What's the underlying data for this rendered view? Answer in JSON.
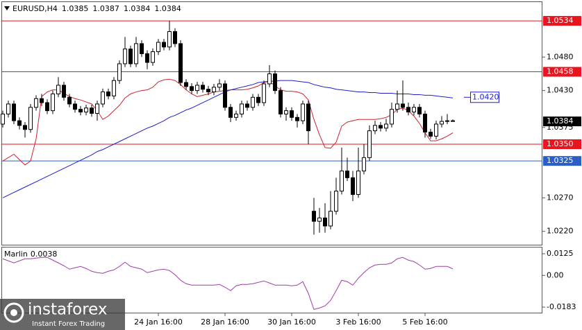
{
  "chart_data": {
    "type": "candlestick",
    "title": "EURUSD,H4",
    "categories": [
      null,
      null,
      null,
      null,
      null,
      null,
      null,
      null,
      null,
      null,
      null,
      null,
      null,
      null,
      null,
      null,
      null,
      null,
      null,
      null,
      null,
      null,
      null,
      null,
      null,
      null,
      null,
      null,
      "24 Jan 16:00",
      null,
      null,
      null,
      null,
      null,
      null,
      null,
      null,
      null,
      null,
      null,
      "28 Jan 16:00",
      null,
      null,
      null,
      null,
      null,
      null,
      null,
      null,
      null,
      null,
      null,
      "30 Jan 16:00",
      null,
      null,
      null,
      null,
      null,
      null,
      null,
      null,
      null,
      null,
      null,
      "3 Feb 16:00",
      null,
      null,
      null,
      null,
      null,
      null,
      null,
      null,
      null,
      null,
      null,
      "5 Feb 16:00",
      null,
      null,
      null,
      null,
      null
    ],
    "open": [
      1.038,
      1.0395,
      1.041,
      1.0385,
      1.0378,
      1.0372,
      1.0405,
      1.0418,
      1.0412,
      1.04,
      1.0425,
      1.0438,
      1.042,
      1.041,
      1.0402,
      1.0398,
      1.0404,
      1.0396,
      1.041,
      1.0428,
      1.0422,
      1.0445,
      1.047,
      1.0492,
      1.047,
      1.05,
      1.0485,
      1.0472,
      1.0488,
      1.0502,
      1.0495,
      1.0518,
      1.05,
      1.0442,
      1.0436,
      1.043,
      1.0438,
      1.0432,
      1.0428,
      1.0435,
      1.044,
      1.0405,
      1.039,
      1.0395,
      1.041,
      1.0405,
      1.042,
      1.0412,
      1.044,
      1.0455,
      1.043,
      1.0395,
      1.04,
      1.039,
      1.0385,
      1.041,
      1.025,
      1.0235,
      1.024,
      1.0228,
      1.025,
      1.028,
      1.031,
      1.03,
      1.0275,
      1.031,
      1.033,
      1.037,
      1.0378,
      1.0374,
      1.038,
      1.0402,
      1.041,
      1.0405,
      1.0398,
      1.0405,
      1.0395,
      1.0368,
      1.0362,
      1.038,
      1.0384,
      1.0385
    ],
    "high": [
      1.04,
      1.0415,
      1.0415,
      1.039,
      1.0383,
      1.041,
      1.0423,
      1.0425,
      1.0417,
      1.043,
      1.045,
      1.0443,
      1.0425,
      1.0415,
      1.0407,
      1.0409,
      1.0409,
      1.0415,
      1.0433,
      1.0433,
      1.045,
      1.0475,
      1.051,
      1.0497,
      1.051,
      1.0505,
      1.049,
      1.0493,
      1.0507,
      1.0507,
      1.0534,
      1.0523,
      1.0505,
      1.0447,
      1.0441,
      1.0443,
      1.0443,
      1.0437,
      1.044,
      1.0447,
      1.0445,
      1.041,
      1.04,
      1.0415,
      1.0415,
      1.0425,
      1.0425,
      1.0445,
      1.0468,
      1.046,
      1.0435,
      1.0405,
      1.0405,
      1.0395,
      1.0415,
      1.0415,
      1.027,
      1.0255,
      1.0262,
      1.028,
      1.03,
      1.0345,
      1.033,
      1.031,
      1.0345,
      1.035,
      1.0378,
      1.0385,
      1.0383,
      1.0388,
      1.0412,
      1.043,
      1.0445,
      1.0412,
      1.041,
      1.041,
      1.04,
      1.0373,
      1.0385,
      1.0392,
      1.0395,
      1.0387
    ],
    "low": [
      1.0375,
      1.039,
      1.038,
      1.0372,
      1.036,
      1.0367,
      1.04,
      1.0407,
      1.0395,
      1.0395,
      1.042,
      1.0415,
      1.0405,
      1.0397,
      1.0393,
      1.0393,
      1.0391,
      1.0385,
      1.0405,
      1.0417,
      1.0417,
      1.044,
      1.0465,
      1.0465,
      1.0465,
      1.048,
      1.0462,
      1.0467,
      1.0483,
      1.049,
      1.049,
      1.0495,
      1.0437,
      1.0431,
      1.0425,
      1.0425,
      1.0427,
      1.0423,
      1.0423,
      1.043,
      1.04,
      1.0383,
      1.0385,
      1.039,
      1.04,
      1.04,
      1.0407,
      1.0407,
      1.0435,
      1.0425,
      1.039,
      1.0385,
      1.0385,
      1.0375,
      1.038,
      1.035,
      1.0215,
      1.0218,
      1.0218,
      1.0223,
      1.0245,
      1.0275,
      1.0295,
      1.0265,
      1.027,
      1.0305,
      1.0325,
      1.0365,
      1.0369,
      1.0369,
      1.0375,
      1.0397,
      1.04,
      1.0393,
      1.0393,
      1.039,
      1.036,
      1.0358,
      1.0357,
      1.0375,
      1.038,
      1.0384
    ],
    "close": [
      1.0395,
      1.041,
      1.0385,
      1.0378,
      1.0372,
      1.0405,
      1.0418,
      1.0412,
      1.04,
      1.0425,
      1.0438,
      1.042,
      1.041,
      1.0402,
      1.0398,
      1.0404,
      1.0396,
      1.041,
      1.0428,
      1.0422,
      1.0445,
      1.047,
      1.0492,
      1.047,
      1.05,
      1.0485,
      1.0472,
      1.0488,
      1.0502,
      1.0495,
      1.0518,
      1.05,
      1.0442,
      1.0436,
      1.043,
      1.0438,
      1.0432,
      1.0428,
      1.0435,
      1.044,
      1.0405,
      1.039,
      1.0395,
      1.041,
      1.0405,
      1.042,
      1.0412,
      1.044,
      1.0455,
      1.043,
      1.0395,
      1.04,
      1.039,
      1.0385,
      1.041,
      1.037,
      1.0235,
      1.024,
      1.0228,
      1.025,
      1.028,
      1.031,
      1.03,
      1.0275,
      1.031,
      1.033,
      1.037,
      1.0378,
      1.0374,
      1.038,
      1.0402,
      1.041,
      1.0405,
      1.0398,
      1.0405,
      1.0395,
      1.0368,
      1.0362,
      1.038,
      1.0384,
      1.0385,
      1.0384
    ],
    "up_color": "#ffffff",
    "down_color": "#000000",
    "overlays": [
      {
        "color": "#d2202c",
        "values": [
          1.0325,
          1.033,
          1.0335,
          1.0327,
          1.0319,
          1.0325,
          1.0358,
          1.0421,
          1.0428,
          1.0431,
          1.0431,
          1.0426,
          1.0421,
          1.0418,
          1.0416,
          1.0413,
          1.041,
          1.04,
          1.0387,
          1.0392,
          1.04,
          1.0408,
          1.0419,
          1.0425,
          1.0428,
          1.043,
          1.0431,
          1.0435,
          1.0443,
          1.0446,
          1.0447,
          1.0445,
          1.0439,
          1.0431,
          1.0425,
          1.0421,
          1.0423,
          1.0425,
          1.0428,
          1.0429,
          1.043,
          1.0431,
          1.0431,
          1.0431,
          1.0432,
          1.0434,
          1.0437,
          1.0442,
          1.0444,
          1.0437,
          1.0431,
          1.0429,
          1.0429,
          1.0428,
          1.0425,
          1.0416,
          1.0387,
          1.0364,
          1.0345,
          1.0344,
          1.0353,
          1.0377,
          1.0383,
          1.0385,
          1.0387,
          1.0387,
          1.0387,
          1.0387,
          1.0388,
          1.039,
          1.0394,
          1.0402,
          1.0404,
          1.04,
          1.0392,
          1.0381,
          1.0367,
          1.0355,
          1.0355,
          1.0358,
          1.0362,
          1.0367
        ]
      },
      {
        "color": "#1c1ccc",
        "values": [
          1.027,
          1.0274,
          1.0278,
          1.0282,
          1.0286,
          1.029,
          1.0294,
          1.0298,
          1.0302,
          1.0306,
          1.031,
          1.0314,
          1.0318,
          1.0322,
          1.0326,
          1.033,
          1.0334,
          1.0339,
          1.0342,
          1.0346,
          1.035,
          1.0354,
          1.0358,
          1.0362,
          1.0366,
          1.037,
          1.0374,
          1.0377,
          1.0381,
          1.0385,
          1.039,
          1.0393,
          1.0397,
          1.0401,
          1.0404,
          1.0408,
          1.0412,
          1.0416,
          1.042,
          1.0424,
          1.0428,
          1.0431,
          1.0433,
          1.0435,
          1.0437,
          1.0439,
          1.0442,
          1.0443,
          1.0444,
          1.0444,
          1.0445,
          1.0445,
          1.0445,
          1.0444,
          1.0443,
          1.0442,
          1.0439,
          1.0437,
          1.0435,
          1.0434,
          1.0432,
          1.0431,
          1.043,
          1.0429,
          1.0428,
          1.0428,
          1.0427,
          1.0427,
          1.0426,
          1.0426,
          1.0426,
          1.0425,
          1.0425,
          1.0425,
          1.0424,
          1.0424,
          1.0423,
          1.0423,
          1.0422,
          1.0421,
          1.042,
          1.0419
        ]
      }
    ],
    "ylim": [
      1.0199,
      1.0562
    ],
    "yticks": [
      {
        "value": 1.048,
        "label": "1.0480"
      },
      {
        "value": 1.043,
        "label": "1.0430"
      },
      1.0375,
      {
        "value": 1.027,
        "label": "1.0270"
      },
      {
        "value": 1.022,
        "label": "1.0220"
      }
    ],
    "levels": [
      {
        "value": 1.0534,
        "color": "#e8141e"
      },
      {
        "value": 1.0458,
        "color": "#e8141e"
      },
      {
        "value": 1.035,
        "label": "1.0350",
        "color": "#e8141e"
      },
      {
        "value": 1.0325,
        "color": "#2a5fc8"
      }
    ],
    "annotations": [
      {
        "value": 1.042,
        "label": "1.0420",
        "color": "#1c1ccc"
      }
    ],
    "price_box_color": "#000000",
    "indicator": {
      "name": "Marlin",
      "color": "#a13ca8",
      "values": [
        0.0096,
        0.0084,
        0.0072,
        0.0084,
        0.0096,
        0.0096,
        0.01,
        0.0104,
        0.0104,
        0.0088,
        0.0072,
        0.0056,
        0.0036,
        0.0044,
        0.0052,
        0.004,
        0.0024,
        0.0016,
        0.0012,
        0.0024,
        0.0032,
        0.0052,
        0.0076,
        0.0052,
        0.0044,
        0.0036,
        0.0016,
        0.0024,
        0.0032,
        0.0036,
        0.0028,
        0.0004,
        -0.0028,
        -0.0048,
        -0.0056,
        -0.0056,
        -0.0056,
        -0.0056,
        -0.0056,
        -0.0052,
        -0.0068,
        -0.0088,
        -0.006,
        -0.0052,
        -0.0052,
        -0.0048,
        -0.004,
        -0.0032,
        -0.0044,
        -0.0056,
        -0.0056,
        -0.0056,
        -0.006,
        -0.0056,
        -0.0036,
        -0.0104,
        -0.0196,
        -0.0188,
        -0.0176,
        -0.0144,
        -0.0088,
        -0.0028,
        -0.0036,
        -0.0056,
        -0.0016,
        0.0016,
        0.0044,
        0.006,
        0.0064,
        0.0064,
        0.0072,
        0.0096,
        0.0104,
        0.0088,
        0.008,
        0.006,
        0.0036,
        0.004,
        0.0052,
        0.0052,
        0.0052,
        0.0038
      ],
      "ylim": [
        -0.0219,
        0.0161
      ],
      "yticks": [
        0.0125,
        {
          "value": 0,
          "label": "0.00"
        },
        -0.0183
      ]
    }
  },
  "branding": {
    "logo": "instaforex",
    "tagline": "Instant Forex Trading"
  }
}
